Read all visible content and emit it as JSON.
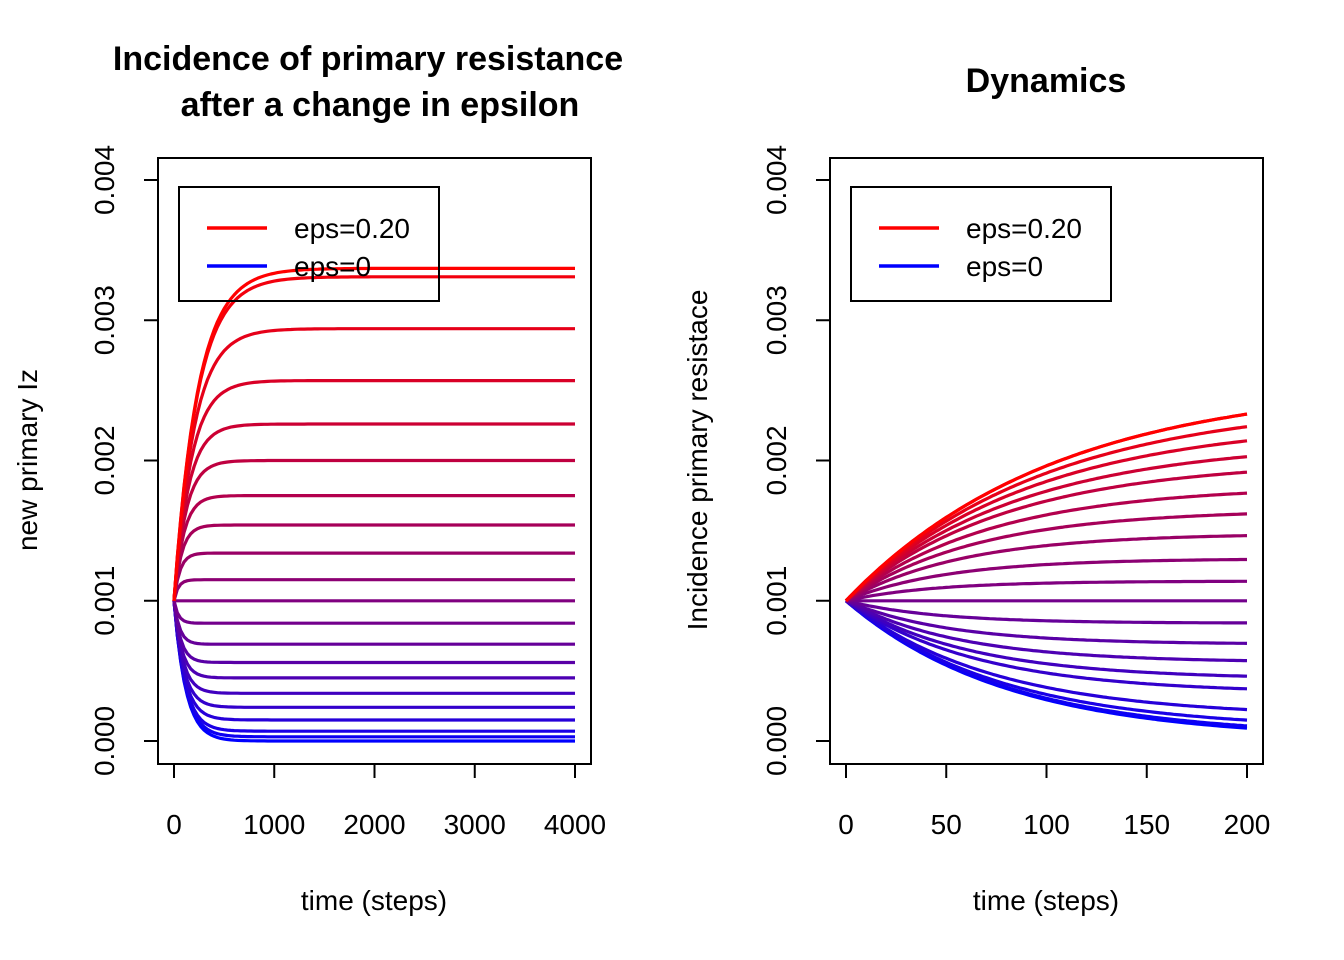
{
  "chart_data": [
    {
      "type": "line",
      "title": [
        "Incidence of primary resistance",
        "after a change in epsilon"
      ],
      "xlabel": "time (steps)",
      "ylabel": "new primary Iz",
      "xlim": [
        0,
        4000
      ],
      "ylim": [
        0,
        0.004
      ],
      "x_ticks": [
        "0",
        "1000",
        "2000",
        "3000",
        "4000"
      ],
      "y_ticks": [
        "0.000",
        "0.001",
        "0.002",
        "0.003",
        "0.004"
      ],
      "grid": false,
      "legend_position": "top-left",
      "legend": [
        {
          "label": "eps=0.20",
          "color": "#FF0000"
        },
        {
          "label": "eps=0",
          "color": "#0000FF"
        }
      ],
      "series_count": 21,
      "start_value": 0.001,
      "final_values": [
        0.0,
        3e-05,
        7e-05,
        0.00015,
        0.00024,
        0.00034,
        0.00045,
        0.00056,
        0.00069,
        0.00084,
        0.001,
        0.00115,
        0.00134,
        0.00154,
        0.00175,
        0.002,
        0.00226,
        0.00257,
        0.00294,
        0.00331,
        0.00337
      ]
    },
    {
      "type": "line",
      "title": "Dynamics",
      "xlabel": "time (steps)",
      "ylabel": "Incidence primary resistace",
      "xlim": [
        0,
        200
      ],
      "ylim": [
        0,
        0.004
      ],
      "x_ticks": [
        "0",
        "50",
        "100",
        "150",
        "200"
      ],
      "y_ticks": [
        "0.000",
        "0.001",
        "0.002",
        "0.003",
        "0.004"
      ],
      "grid": false,
      "legend_position": "top-left",
      "legend": [
        {
          "label": "eps=0.20",
          "color": "#FF0000"
        },
        {
          "label": "eps=0",
          "color": "#0000FF"
        }
      ],
      "series_count": 21,
      "start_value": 0.001,
      "final_values": [
        1e-05,
        3e-05,
        8e-05,
        0.00017,
        0.00034,
        0.00044,
        0.00056,
        0.00069,
        0.00084,
        0.001,
        0.00114,
        0.0013,
        0.00148,
        0.00165,
        0.00182,
        0.002,
        0.00214,
        0.00229,
        0.00243,
        0.00256,
        0.00256
      ]
    }
  ]
}
